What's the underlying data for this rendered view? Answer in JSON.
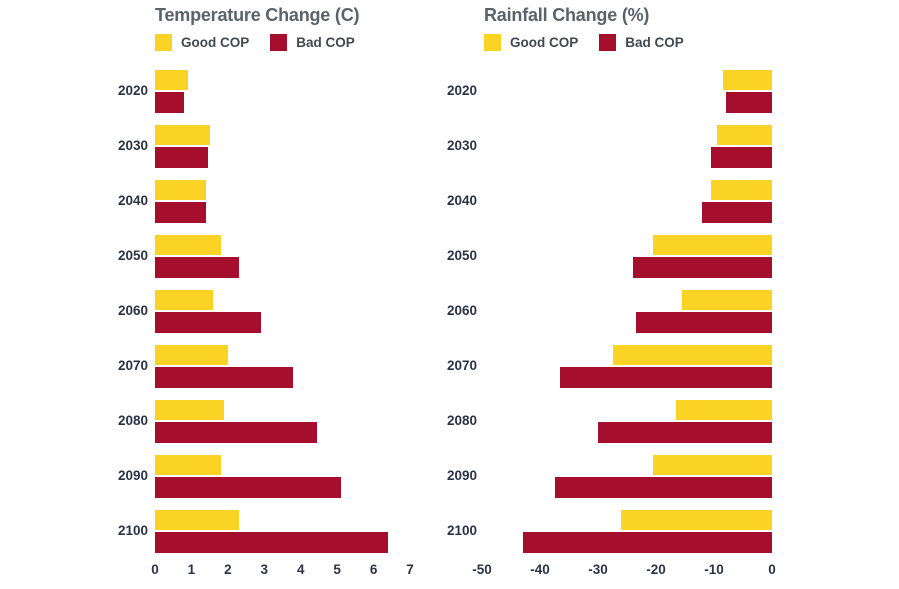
{
  "chart_data": [
    {
      "type": "bar",
      "orientation": "horizontal",
      "title": "Temperature Change (C)",
      "categories": [
        "2020",
        "2030",
        "2040",
        "2050",
        "2060",
        "2070",
        "2080",
        "2090",
        "2100"
      ],
      "series": [
        {
          "name": "Good COP",
          "color": "#FBD324",
          "values": [
            0.9,
            1.5,
            1.4,
            1.8,
            1.6,
            2.0,
            1.9,
            1.8,
            2.3
          ]
        },
        {
          "name": "Bad COP",
          "color": "#A50E2D",
          "values": [
            0.8,
            1.45,
            1.4,
            2.3,
            2.9,
            3.8,
            4.45,
            5.1,
            6.4
          ]
        }
      ],
      "xlabel": "",
      "ylabel": "",
      "xlim": [
        0,
        7
      ],
      "xticks": [
        0,
        1,
        2,
        3,
        4,
        5,
        6,
        7
      ],
      "grid": false,
      "legend_position": "top-left"
    },
    {
      "type": "bar",
      "orientation": "horizontal",
      "title": "Rainfall Change (%)",
      "categories": [
        "2020",
        "2030",
        "2040",
        "2050",
        "2060",
        "2070",
        "2080",
        "2090",
        "2100"
      ],
      "series": [
        {
          "name": "Good COP",
          "color": "#FBD324",
          "values": [
            -8.5,
            -9.5,
            -10.5,
            -20.5,
            -15.5,
            -27.5,
            -16.5,
            -20.5,
            -26
          ]
        },
        {
          "name": "Bad COP",
          "color": "#A50E2D",
          "values": [
            -8,
            -10.5,
            -12,
            -24,
            -23.5,
            -36.5,
            -30,
            -37.5,
            -43
          ]
        }
      ],
      "xlabel": "",
      "ylabel": "",
      "xlim": [
        -50,
        0
      ],
      "xticks": [
        -50,
        -40,
        -30,
        -20,
        -10,
        0
      ],
      "grid": false,
      "legend_position": "top-left"
    }
  ]
}
